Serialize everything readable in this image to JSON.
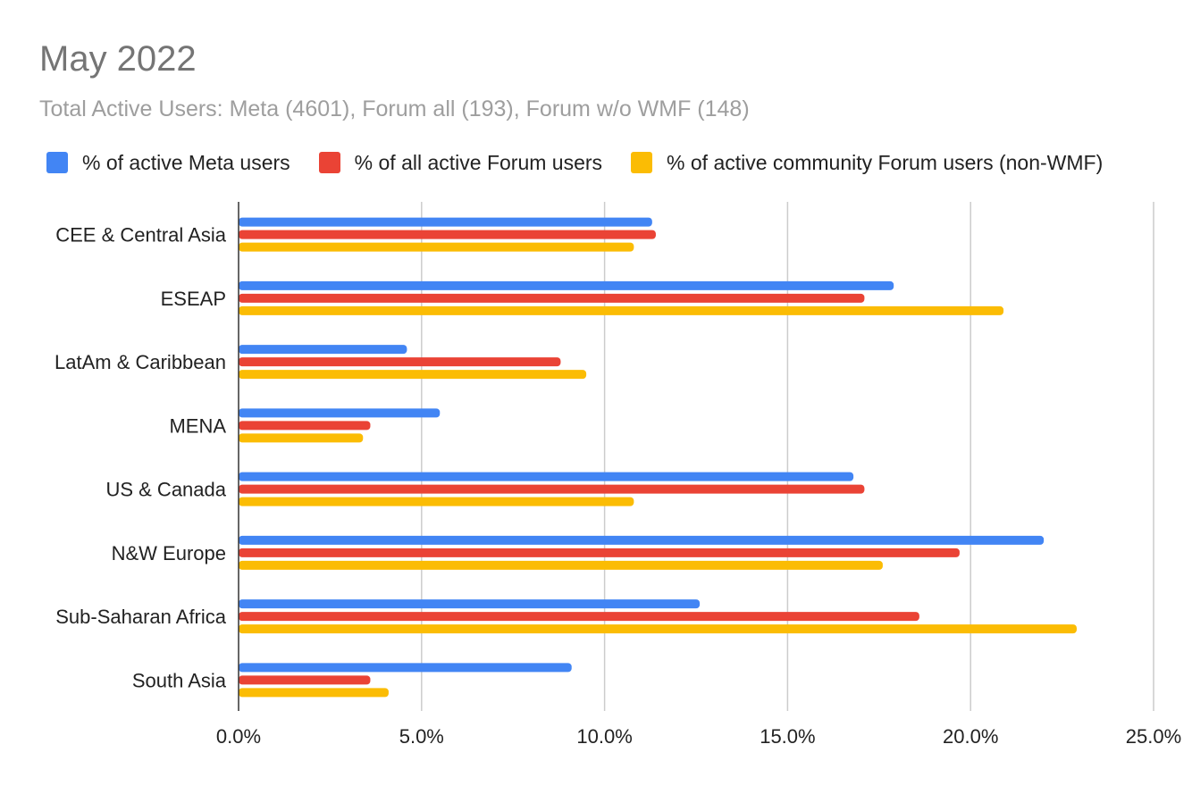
{
  "chart_data": {
    "type": "bar",
    "orientation": "horizontal",
    "title": "May 2022",
    "subtitle": "Total Active Users: Meta (4601), Forum all (193), Forum w/o WMF (148)",
    "categories": [
      "CEE & Central Asia",
      "ESEAP",
      "LatAm & Caribbean",
      "MENA",
      "US & Canada",
      "N&W Europe",
      "Sub-Saharan Africa",
      "South Asia"
    ],
    "series": [
      {
        "name": "% of active Meta users",
        "color": "#4285f4",
        "values": [
          11.3,
          17.9,
          4.6,
          5.5,
          16.8,
          22.0,
          12.6,
          9.1
        ]
      },
      {
        "name": "% of all active Forum users",
        "color": "#ea4335",
        "values": [
          11.4,
          17.1,
          8.8,
          3.6,
          17.1,
          19.7,
          18.6,
          3.6
        ]
      },
      {
        "name": "% of active community Forum users (non-WMF)",
        "color": "#fbbc04",
        "values": [
          10.8,
          20.9,
          9.5,
          3.4,
          10.8,
          17.6,
          22.9,
          4.1
        ]
      }
    ],
    "xlim": [
      0,
      25
    ],
    "xticks": [
      "0.0%",
      "5.0%",
      "10.0%",
      "15.0%",
      "20.0%",
      "25.0%"
    ],
    "xlabel": "",
    "ylabel": "",
    "grid": true,
    "legend_position": "top-left"
  }
}
